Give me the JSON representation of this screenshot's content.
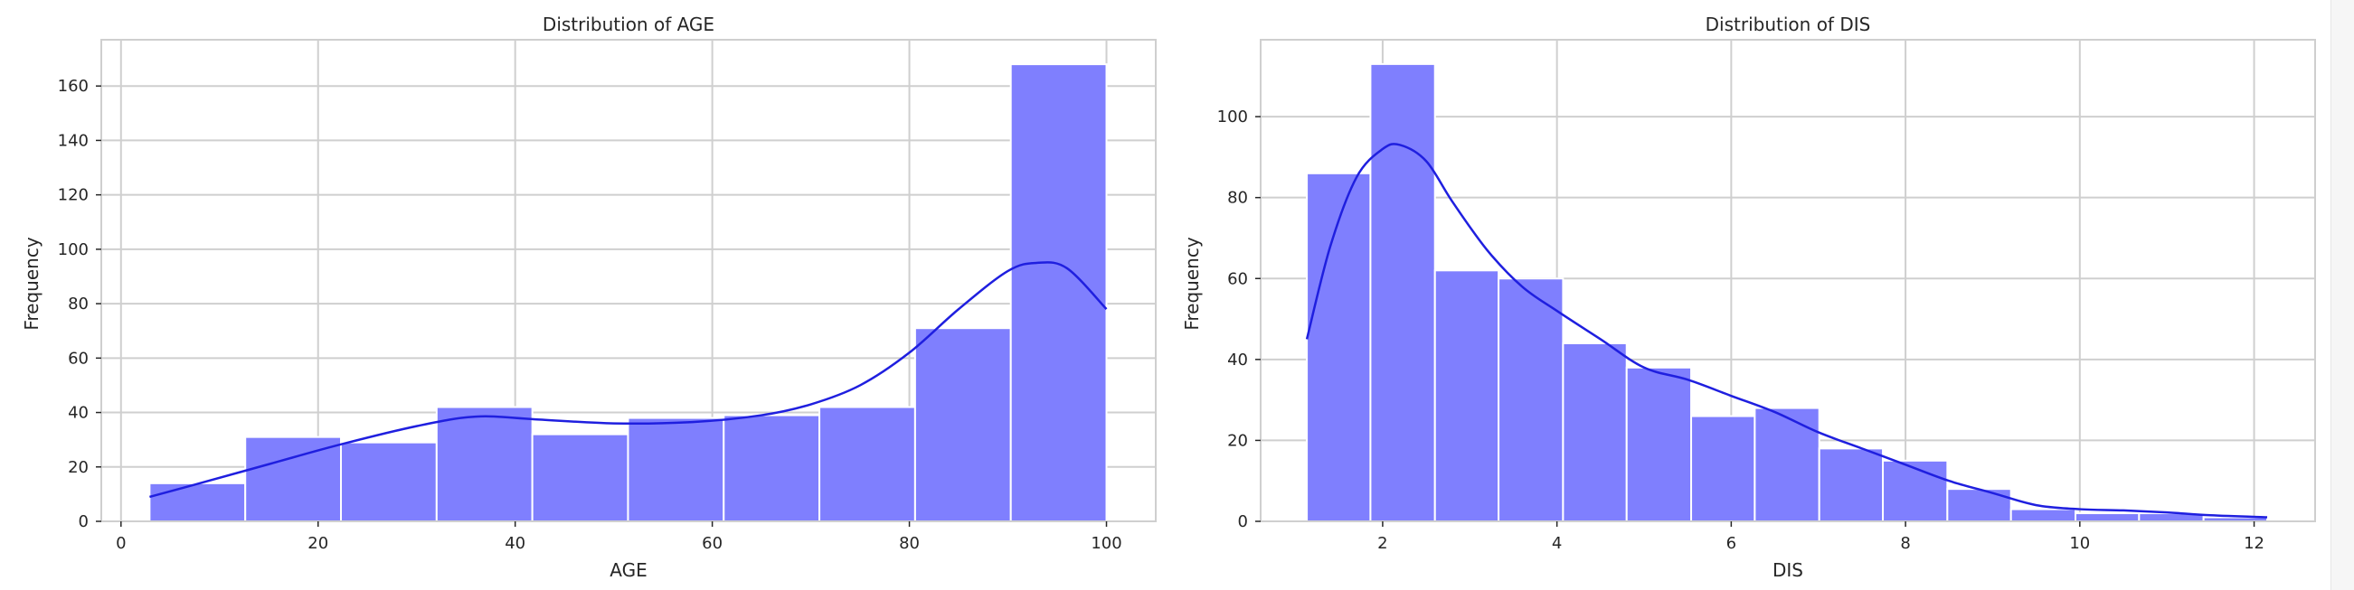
{
  "chart_data": [
    {
      "type": "bar",
      "title": "Distribution of AGE",
      "xlabel": "AGE",
      "ylabel": "Frequency",
      "xlim": [
        -2,
        105
      ],
      "ylim": [
        0,
        177
      ],
      "xticks": [
        0,
        20,
        40,
        60,
        80,
        100
      ],
      "yticks": [
        0,
        20,
        40,
        60,
        80,
        100,
        120,
        140,
        160
      ],
      "bin_edges": [
        2.9,
        12.61,
        22.32,
        32.03,
        41.74,
        51.45,
        61.16,
        70.87,
        80.58,
        90.29,
        100.0
      ],
      "values": [
        14,
        31,
        29,
        42,
        32,
        38,
        39,
        42,
        71,
        168
      ],
      "kde": {
        "x": [
          2.9,
          8,
          15,
          22,
          30,
          36,
          42,
          50,
          58,
          65,
          70,
          75,
          80,
          85,
          90,
          93,
          96,
          100
        ],
        "y": [
          9,
          14,
          21,
          28,
          35,
          38.5,
          37.5,
          36,
          36.5,
          39,
          43,
          50,
          62,
          78,
          92,
          95,
          93,
          78
        ]
      },
      "grid": true,
      "bar_color": "#7f7ffe",
      "kde_color": "#1f1fdf"
    },
    {
      "type": "bar",
      "title": "Distribution of DIS",
      "xlabel": "DIS",
      "ylabel": "Frequency",
      "xlim": [
        0.6,
        12.7
      ],
      "ylim": [
        0,
        119
      ],
      "xticks": [
        2,
        4,
        6,
        8,
        10,
        12
      ],
      "yticks": [
        0,
        20,
        40,
        60,
        80,
        100
      ],
      "bin_edges": [
        1.13,
        1.86,
        2.6,
        3.33,
        4.07,
        4.8,
        5.54,
        6.27,
        7.01,
        7.74,
        8.48,
        9.21,
        9.95,
        10.68,
        11.42,
        12.15
      ],
      "values": [
        86,
        113,
        62,
        60,
        44,
        38,
        26,
        28,
        18,
        15,
        8,
        3,
        2,
        2,
        1
      ],
      "kde": {
        "x": [
          1.13,
          1.4,
          1.7,
          2.0,
          2.2,
          2.5,
          2.8,
          3.2,
          3.6,
          4.0,
          4.5,
          5.0,
          5.5,
          6.0,
          6.5,
          7.0,
          7.5,
          8.0,
          8.5,
          9.0,
          9.5,
          10.0,
          10.5,
          11.0,
          11.5,
          12.15
        ],
        "y": [
          45,
          68,
          85,
          92,
          93,
          89,
          79,
          67,
          58,
          52,
          45,
          38,
          35,
          31,
          27,
          22,
          18,
          14,
          10,
          7,
          4,
          3,
          2.7,
          2.2,
          1.5,
          1
        ]
      },
      "grid": true,
      "bar_color": "#7f7ffe",
      "kde_color": "#1f1fdf"
    }
  ]
}
